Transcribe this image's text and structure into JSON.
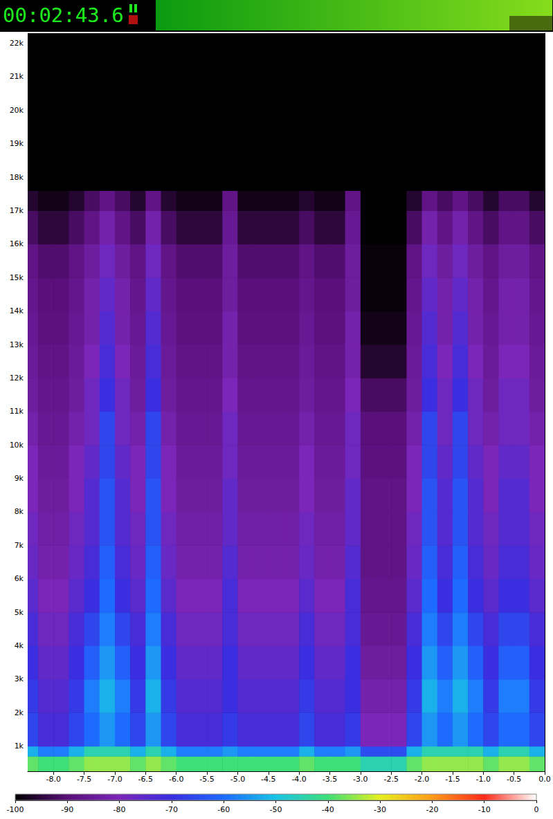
{
  "header": {
    "time": "00:02:43.6"
  },
  "chart_data": {
    "type": "spectrogram",
    "xlim": [
      -8.42,
      0
    ],
    "xticks": [
      {
        "value": -8,
        "label": "-8.0"
      },
      {
        "value": -7.5,
        "label": "-7.5"
      },
      {
        "value": -7,
        "label": "-7.0"
      },
      {
        "value": -6.5,
        "label": "-6.5"
      },
      {
        "value": -6,
        "label": "-6.0"
      },
      {
        "value": -5.5,
        "label": "-5.5"
      },
      {
        "value": -5,
        "label": "-5.0"
      },
      {
        "value": -4.5,
        "label": "-4.5"
      },
      {
        "value": -4,
        "label": "-4.0"
      },
      {
        "value": -3.5,
        "label": "-3.5"
      },
      {
        "value": -3,
        "label": "-3.0"
      },
      {
        "value": -2.5,
        "label": "-2.5"
      },
      {
        "value": -2,
        "label": "-2.0"
      },
      {
        "value": -1.5,
        "label": "-1.5"
      },
      {
        "value": -1,
        "label": "-1.0"
      },
      {
        "value": -0.5,
        "label": "-0.5"
      },
      {
        "value": 0,
        "label": "0.0"
      }
    ],
    "ylim": [
      250,
      22300
    ],
    "yticks": [
      {
        "value": 1000,
        "label": "1k"
      },
      {
        "value": 2000,
        "label": "2k"
      },
      {
        "value": 3000,
        "label": "3k"
      },
      {
        "value": 4000,
        "label": "4k"
      },
      {
        "value": 5000,
        "label": "5k"
      },
      {
        "value": 6000,
        "label": "6k"
      },
      {
        "value": 7000,
        "label": "7k"
      },
      {
        "value": 8000,
        "label": "8k"
      },
      {
        "value": 9000,
        "label": "9k"
      },
      {
        "value": 10000,
        "label": "10k"
      },
      {
        "value": 11000,
        "label": "11k"
      },
      {
        "value": 12000,
        "label": "12k"
      },
      {
        "value": 13000,
        "label": "13k"
      },
      {
        "value": 14000,
        "label": "14k"
      },
      {
        "value": 15000,
        "label": "15k"
      },
      {
        "value": 16000,
        "label": "16k"
      },
      {
        "value": 17000,
        "label": "17k"
      },
      {
        "value": 18000,
        "label": "18k"
      },
      {
        "value": 19000,
        "label": "19k"
      },
      {
        "value": 20000,
        "label": "20k"
      },
      {
        "value": 21000,
        "label": "21k"
      },
      {
        "value": 22000,
        "label": "22k"
      }
    ],
    "cells": {
      "x_edges": [
        -8.42,
        -8.25,
        -8,
        -7.75,
        -7.5,
        -7.25,
        -7,
        -6.75,
        -6.5,
        -6.25,
        -6,
        -5.75,
        -5.5,
        -5.25,
        -5,
        -4.75,
        -4.5,
        -4.25,
        -4,
        -3.75,
        -3.5,
        -3.25,
        -3,
        -2.75,
        -2.5,
        -2.25,
        -2,
        -1.75,
        -1.5,
        -1.25,
        -1,
        -0.75,
        -0.5,
        -0.25,
        0
      ],
      "y_edges": [
        250,
        700,
        1000,
        2000,
        3000,
        4000,
        5000,
        6000,
        7000,
        8000,
        9000,
        10000,
        11000,
        12000,
        13000,
        14000,
        15000,
        16000,
        17000,
        17600,
        22300
      ],
      "db": [
        [
          -38,
          -52,
          -66,
          -68,
          -70,
          -72,
          -75,
          -77,
          -78,
          -80,
          -80,
          -82,
          -84,
          -85,
          -86,
          -87,
          -88,
          -92,
          -96,
          -100
        ],
        [
          -40,
          -58,
          -72,
          -74,
          -76,
          -78,
          -80,
          -82,
          -83,
          -84,
          -85,
          -86,
          -87,
          -88,
          -89,
          -90,
          -91,
          -95,
          -98,
          -100
        ],
        [
          -40,
          -58,
          -72,
          -74,
          -76,
          -78,
          -80,
          -82,
          -83,
          -84,
          -85,
          -86,
          -87,
          -88,
          -89,
          -90,
          -91,
          -95,
          -98,
          -100
        ],
        [
          -38,
          -52,
          -66,
          -68,
          -70,
          -72,
          -75,
          -77,
          -78,
          -80,
          -80,
          -82,
          -84,
          -85,
          -86,
          -87,
          -88,
          -92,
          -96,
          -100
        ],
        [
          -35,
          -45,
          -60,
          -58,
          -62,
          -66,
          -70,
          -72,
          -74,
          -74,
          -76,
          -78,
          -78,
          -80,
          -82,
          -82,
          -84,
          -88,
          -92,
          -100
        ],
        [
          -35,
          -45,
          -55,
          -52,
          -55,
          -58,
          -60,
          -62,
          -64,
          -64,
          -66,
          -66,
          -70,
          -72,
          -74,
          -76,
          -78,
          -82,
          -88,
          -100
        ],
        [
          -35,
          -45,
          -60,
          -58,
          -62,
          -66,
          -70,
          -72,
          -74,
          -74,
          -76,
          -78,
          -78,
          -80,
          -82,
          -82,
          -84,
          -88,
          -92,
          -100
        ],
        [
          -38,
          -52,
          -66,
          -68,
          -70,
          -72,
          -75,
          -77,
          -78,
          -80,
          -80,
          -82,
          -84,
          -85,
          -86,
          -87,
          -88,
          -92,
          -96,
          -100
        ],
        [
          -35,
          -45,
          -55,
          -52,
          -55,
          -58,
          -60,
          -62,
          -64,
          -64,
          -66,
          -66,
          -70,
          -72,
          -74,
          -76,
          -78,
          -82,
          -88,
          -100
        ],
        [
          -38,
          -52,
          -66,
          -68,
          -70,
          -72,
          -75,
          -77,
          -78,
          -80,
          -80,
          -82,
          -84,
          -85,
          -86,
          -87,
          -88,
          -92,
          -96,
          -100
        ],
        [
          -40,
          -58,
          -72,
          -74,
          -76,
          -78,
          -80,
          -82,
          -83,
          -84,
          -85,
          -86,
          -87,
          -88,
          -89,
          -90,
          -91,
          -95,
          -98,
          -100
        ],
        [
          -40,
          -58,
          -72,
          -74,
          -76,
          -78,
          -80,
          -82,
          -83,
          -84,
          -85,
          -86,
          -87,
          -88,
          -89,
          -90,
          -91,
          -95,
          -98,
          -100
        ],
        [
          -40,
          -58,
          -72,
          -74,
          -76,
          -78,
          -80,
          -82,
          -83,
          -84,
          -85,
          -86,
          -87,
          -88,
          -89,
          -90,
          -91,
          -95,
          -98,
          -100
        ],
        [
          -40,
          -55,
          -68,
          -70,
          -70,
          -72,
          -72,
          -74,
          -76,
          -76,
          -78,
          -78,
          -80,
          -82,
          -82,
          -84,
          -84,
          -86,
          -88,
          -100
        ],
        [
          -40,
          -58,
          -72,
          -74,
          -76,
          -78,
          -80,
          -82,
          -83,
          -84,
          -85,
          -86,
          -87,
          -88,
          -89,
          -90,
          -91,
          -95,
          -98,
          -100
        ],
        [
          -40,
          -58,
          -72,
          -74,
          -76,
          -78,
          -80,
          -82,
          -83,
          -84,
          -85,
          -86,
          -87,
          -88,
          -89,
          -90,
          -91,
          -95,
          -98,
          -100
        ],
        [
          -40,
          -58,
          -72,
          -74,
          -76,
          -78,
          -80,
          -82,
          -83,
          -84,
          -85,
          -86,
          -87,
          -88,
          -89,
          -90,
          -91,
          -95,
          -98,
          -100
        ],
        [
          -40,
          -58,
          -72,
          -74,
          -76,
          -78,
          -80,
          -82,
          -83,
          -84,
          -85,
          -86,
          -87,
          -88,
          -89,
          -90,
          -91,
          -95,
          -98,
          -100
        ],
        [
          -38,
          -52,
          -66,
          -68,
          -70,
          -72,
          -75,
          -77,
          -78,
          -80,
          -80,
          -82,
          -84,
          -85,
          -86,
          -87,
          -88,
          -92,
          -96,
          -100
        ],
        [
          -40,
          -58,
          -72,
          -74,
          -76,
          -78,
          -80,
          -82,
          -83,
          -84,
          -85,
          -86,
          -87,
          -88,
          -89,
          -90,
          -91,
          -95,
          -98,
          -100
        ],
        [
          -40,
          -58,
          -72,
          -74,
          -76,
          -78,
          -80,
          -82,
          -83,
          -84,
          -85,
          -86,
          -87,
          -88,
          -89,
          -90,
          -91,
          -95,
          -98,
          -100
        ],
        [
          -40,
          -55,
          -68,
          -70,
          -70,
          -72,
          -72,
          -74,
          -76,
          -76,
          -78,
          -78,
          -80,
          -82,
          -82,
          -84,
          -84,
          -86,
          -88,
          -100
        ],
        [
          -45,
          -65,
          -80,
          -82,
          -84,
          -86,
          -87,
          -88,
          -88,
          -88,
          -89,
          -90,
          -92,
          -96,
          -98,
          -99,
          -99,
          -100,
          -100,
          -100
        ],
        [
          -45,
          -65,
          -80,
          -82,
          -84,
          -86,
          -87,
          -88,
          -88,
          -88,
          -89,
          -90,
          -92,
          -96,
          -98,
          -99,
          -99,
          -100,
          -100,
          -100
        ],
        [
          -45,
          -65,
          -80,
          -82,
          -84,
          -86,
          -87,
          -88,
          -88,
          -88,
          -89,
          -90,
          -92,
          -96,
          -98,
          -99,
          -99,
          -100,
          -100,
          -100
        ],
        [
          -38,
          -52,
          -66,
          -68,
          -70,
          -72,
          -75,
          -77,
          -78,
          -80,
          -80,
          -82,
          -84,
          -85,
          -86,
          -87,
          -88,
          -92,
          -96,
          -100
        ],
        [
          -35,
          -45,
          -55,
          -52,
          -55,
          -58,
          -60,
          -62,
          -64,
          -64,
          -66,
          -66,
          -70,
          -72,
          -74,
          -76,
          -78,
          -82,
          -88,
          -100
        ],
        [
          -35,
          -45,
          -60,
          -58,
          -62,
          -66,
          -70,
          -72,
          -74,
          -74,
          -76,
          -78,
          -78,
          -80,
          -82,
          -82,
          -84,
          -88,
          -92,
          -100
        ],
        [
          -35,
          -45,
          -55,
          -52,
          -55,
          -58,
          -60,
          -62,
          -64,
          -64,
          -66,
          -66,
          -70,
          -72,
          -74,
          -76,
          -78,
          -82,
          -88,
          -100
        ],
        [
          -35,
          -45,
          -60,
          -58,
          -62,
          -66,
          -70,
          -72,
          -74,
          -74,
          -76,
          -78,
          -78,
          -80,
          -82,
          -82,
          -84,
          -88,
          -92,
          -100
        ],
        [
          -38,
          -52,
          -66,
          -68,
          -70,
          -72,
          -75,
          -77,
          -78,
          -80,
          -80,
          -82,
          -84,
          -85,
          -86,
          -87,
          -88,
          -92,
          -96,
          -100
        ],
        [
          -35,
          -45,
          -60,
          -58,
          -62,
          -66,
          -70,
          -72,
          -74,
          -74,
          -76,
          -78,
          -78,
          -80,
          -82,
          -82,
          -84,
          -88,
          -92,
          -100
        ],
        [
          -35,
          -45,
          -60,
          -58,
          -62,
          -66,
          -70,
          -72,
          -74,
          -74,
          -76,
          -78,
          -78,
          -80,
          -82,
          -82,
          -84,
          -88,
          -92,
          -100
        ],
        [
          -38,
          -52,
          -66,
          -68,
          -70,
          -72,
          -75,
          -77,
          -78,
          -80,
          -80,
          -82,
          -84,
          -85,
          -86,
          -87,
          -88,
          -92,
          -96,
          -100
        ]
      ]
    },
    "colorbar": {
      "range": [
        -100,
        0
      ],
      "ticks": [
        -100,
        -90,
        -80,
        -70,
        -60,
        -50,
        -40,
        -30,
        -20,
        -10,
        0
      ]
    }
  }
}
